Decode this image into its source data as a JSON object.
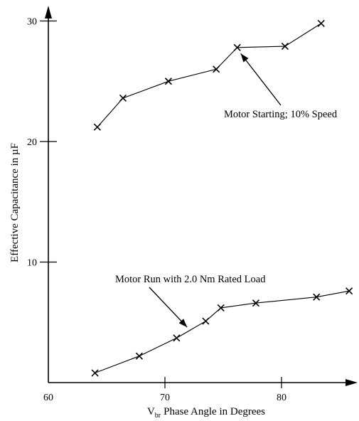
{
  "chart_data": {
    "type": "line",
    "title": "",
    "xlabel": "Phase Angle in  Degrees",
    "xlabel_prefix": "V",
    "xlabel_subscript": "br",
    "ylabel": "Effective Capacitance in µF",
    "xlim": [
      60,
      86
    ],
    "ylim": [
      0,
      31
    ],
    "xticks": [
      60,
      70,
      80
    ],
    "yticks": [
      10,
      20,
      30
    ],
    "grid": false,
    "series": [
      {
        "x": [
          64.2,
          66.4,
          70.3,
          74.4,
          76.2,
          80.3,
          83.4
        ],
        "y": [
          21.2,
          23.6,
          25.0,
          26.0,
          27.8,
          27.9,
          29.8
        ]
      },
      {
        "x": [
          64.0,
          67.8,
          71.0,
          73.5,
          74.8,
          77.8,
          83.0,
          85.8
        ],
        "y": [
          0.8,
          2.2,
          3.7,
          5.1,
          6.2,
          6.6,
          7.1,
          7.6
        ]
      }
    ],
    "annotations": [
      {
        "text": "Motor Starting; 10% Speed",
        "arrow_to": {
          "x": 76.5,
          "y": 27.3
        }
      },
      {
        "text": "Motor  Run with 2.0 Nm Rated Load",
        "arrow_to": {
          "x": 71.9,
          "y": 4.6
        }
      }
    ]
  }
}
